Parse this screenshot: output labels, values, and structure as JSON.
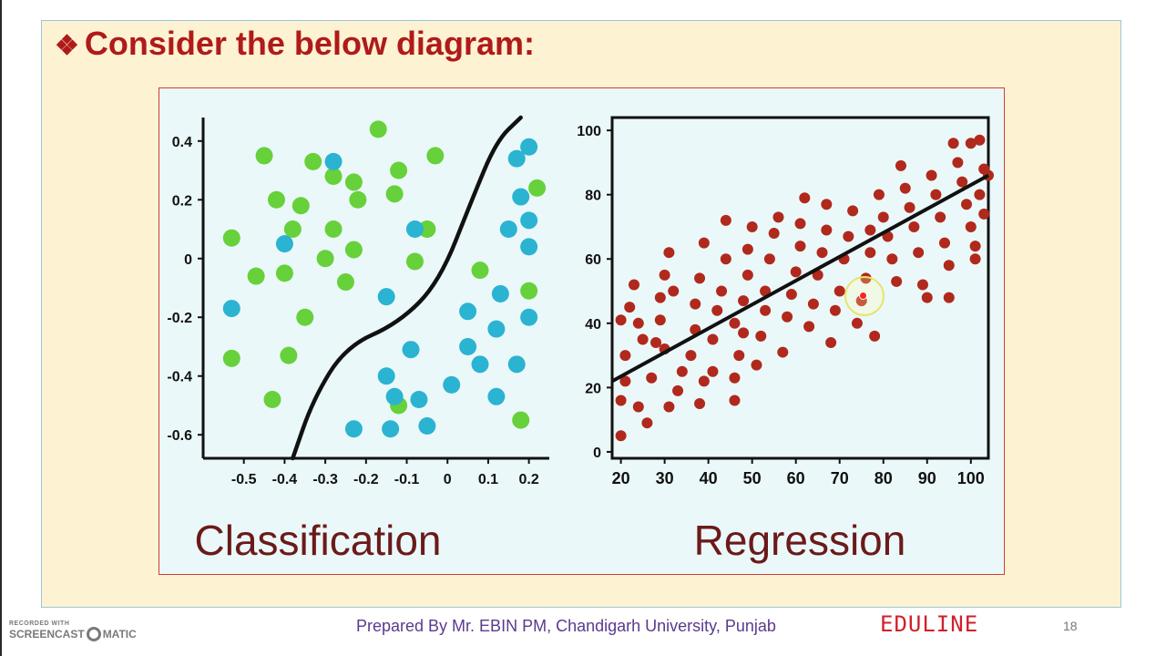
{
  "slide": {
    "title": "Consider the below diagram:",
    "title_bullet": "❖",
    "footer_credit": "Prepared By Mr. EBIN PM, Chandigarh University, Punjab",
    "brand": "EDULINE",
    "page_number": "18",
    "watermark_top": "RECORDED WITH",
    "watermark_main_left": "SCREENCAST",
    "watermark_main_right": "MATIC"
  },
  "colors": {
    "title": "#b01a1a",
    "class_a": "#66d13a",
    "class_b": "#2bb3d2",
    "regression_point": "#b0291c",
    "line": "#111111",
    "caption": "#6b1a1a"
  },
  "chart_data": [
    {
      "type": "scatter",
      "caption": "Classification",
      "xlim": [
        -0.6,
        0.25
      ],
      "ylim": [
        -0.68,
        0.48
      ],
      "x_ticks": [
        -0.5,
        -0.4,
        -0.3,
        -0.2,
        -0.1,
        0,
        0.1,
        0.2
      ],
      "x_tick_labels": [
        "-0.5",
        "-0.4",
        "-0.3",
        "-0.2",
        "-0.1",
        "0",
        "0.1",
        "0.2"
      ],
      "y_ticks": [
        0.4,
        0.2,
        0,
        -0.2,
        -0.4,
        -0.6
      ],
      "y_tick_labels": [
        "0.4",
        "0.2",
        "0",
        "-0.2",
        "-0.4",
        "-0.6"
      ],
      "boundary": [
        [
          -0.38,
          -0.68
        ],
        [
          -0.33,
          -0.48
        ],
        [
          -0.25,
          -0.3
        ],
        [
          -0.12,
          -0.22
        ],
        [
          -0.02,
          -0.08
        ],
        [
          0.06,
          0.2
        ],
        [
          0.12,
          0.4
        ],
        [
          0.18,
          0.48
        ]
      ],
      "series": [
        {
          "color": "#66d13a",
          "points": [
            [
              -0.17,
              0.44
            ],
            [
              -0.45,
              0.35
            ],
            [
              -0.33,
              0.33
            ],
            [
              -0.28,
              0.28
            ],
            [
              -0.23,
              0.26
            ],
            [
              -0.13,
              0.22
            ],
            [
              -0.03,
              0.35
            ],
            [
              -0.05,
              0.1
            ],
            [
              -0.12,
              0.3
            ],
            [
              -0.22,
              0.2
            ],
            [
              -0.36,
              0.18
            ],
            [
              -0.42,
              0.2
            ],
            [
              -0.53,
              0.07
            ],
            [
              -0.28,
              0.1
            ],
            [
              -0.38,
              0.1
            ],
            [
              -0.23,
              0.03
            ],
            [
              -0.3,
              0.0
            ],
            [
              -0.25,
              -0.08
            ],
            [
              -0.47,
              -0.06
            ],
            [
              -0.4,
              -0.05
            ],
            [
              -0.35,
              -0.2
            ],
            [
              -0.53,
              -0.34
            ],
            [
              -0.39,
              -0.33
            ],
            [
              -0.43,
              -0.48
            ],
            [
              -0.08,
              -0.01
            ],
            [
              0.08,
              -0.04
            ],
            [
              0.2,
              -0.11
            ],
            [
              0.22,
              0.24
            ],
            [
              -0.12,
              -0.5
            ],
            [
              0.18,
              -0.55
            ]
          ]
        },
        {
          "color": "#2bb3d2",
          "points": [
            [
              -0.28,
              0.33
            ],
            [
              0.2,
              0.38
            ],
            [
              0.17,
              0.34
            ],
            [
              0.18,
              0.21
            ],
            [
              0.2,
              0.13
            ],
            [
              0.15,
              0.1
            ],
            [
              0.2,
              0.04
            ],
            [
              -0.08,
              0.1
            ],
            [
              -0.4,
              0.05
            ],
            [
              -0.15,
              -0.13
            ],
            [
              -0.53,
              -0.17
            ],
            [
              0.05,
              -0.18
            ],
            [
              0.13,
              -0.12
            ],
            [
              0.2,
              -0.2
            ],
            [
              -0.09,
              -0.31
            ],
            [
              0.05,
              -0.3
            ],
            [
              0.12,
              -0.24
            ],
            [
              0.08,
              -0.36
            ],
            [
              0.17,
              -0.36
            ],
            [
              -0.15,
              -0.4
            ],
            [
              0.01,
              -0.43
            ],
            [
              0.12,
              -0.47
            ],
            [
              -0.13,
              -0.47
            ],
            [
              -0.07,
              -0.48
            ],
            [
              -0.23,
              -0.58
            ],
            [
              -0.14,
              -0.58
            ],
            [
              -0.05,
              -0.57
            ]
          ]
        }
      ]
    },
    {
      "type": "scatter",
      "caption": "Regression",
      "xlim": [
        18,
        104
      ],
      "ylim": [
        -2,
        104
      ],
      "x_ticks": [
        20,
        30,
        40,
        50,
        60,
        70,
        80,
        90,
        100
      ],
      "x_tick_labels": [
        "20",
        "30",
        "40",
        "50",
        "60",
        "70",
        "80",
        "90",
        "100"
      ],
      "y_ticks": [
        100,
        80,
        60,
        40,
        20,
        0
      ],
      "y_tick_labels": [
        "100",
        "80",
        "60",
        "40",
        "20",
        "0"
      ],
      "fit_line": [
        [
          18,
          22
        ],
        [
          104,
          86
        ]
      ],
      "series": [
        {
          "color": "#b0291c",
          "points": [
            [
              20,
              5
            ],
            [
              20,
              16
            ],
            [
              21,
              30
            ],
            [
              22,
              45
            ],
            [
              23,
              52
            ],
            [
              24,
              40
            ],
            [
              25,
              35
            ],
            [
              20,
              41
            ],
            [
              21,
              22
            ],
            [
              24,
              14
            ],
            [
              26,
              9
            ],
            [
              27,
              23
            ],
            [
              28,
              34
            ],
            [
              29,
              41
            ],
            [
              29,
              48
            ],
            [
              30,
              55
            ],
            [
              31,
              62
            ],
            [
              32,
              50
            ],
            [
              30,
              32
            ],
            [
              31,
              14
            ],
            [
              33,
              19
            ],
            [
              34,
              25
            ],
            [
              36,
              30
            ],
            [
              37,
              38
            ],
            [
              37,
              46
            ],
            [
              38,
              54
            ],
            [
              39,
              65
            ],
            [
              38,
              15
            ],
            [
              39,
              22
            ],
            [
              41,
              25
            ],
            [
              41,
              35
            ],
            [
              42,
              44
            ],
            [
              43,
              50
            ],
            [
              44,
              60
            ],
            [
              44,
              72
            ],
            [
              46,
              40
            ],
            [
              46,
              23
            ],
            [
              46,
              16
            ],
            [
              47,
              30
            ],
            [
              48,
              37
            ],
            [
              48,
              47
            ],
            [
              49,
              55
            ],
            [
              49,
              63
            ],
            [
              50,
              70
            ],
            [
              51,
              27
            ],
            [
              52,
              36
            ],
            [
              53,
              44
            ],
            [
              53,
              50
            ],
            [
              54,
              60
            ],
            [
              55,
              68
            ],
            [
              56,
              73
            ],
            [
              57,
              31
            ],
            [
              58,
              42
            ],
            [
              59,
              49
            ],
            [
              60,
              56
            ],
            [
              61,
              64
            ],
            [
              61,
              71
            ],
            [
              62,
              79
            ],
            [
              63,
              39
            ],
            [
              64,
              46
            ],
            [
              65,
              55
            ],
            [
              66,
              62
            ],
            [
              67,
              69
            ],
            [
              67,
              77
            ],
            [
              68,
              34
            ],
            [
              69,
              44
            ],
            [
              70,
              50
            ],
            [
              71,
              60
            ],
            [
              72,
              67
            ],
            [
              73,
              75
            ],
            [
              74,
              40
            ],
            [
              75,
              47
            ],
            [
              76,
              54
            ],
            [
              77,
              62
            ],
            [
              77,
              69
            ],
            [
              78,
              36
            ],
            [
              79,
              80
            ],
            [
              80,
              73
            ],
            [
              81,
              67
            ],
            [
              82,
              60
            ],
            [
              83,
              53
            ],
            [
              84,
              89
            ],
            [
              85,
              82
            ],
            [
              86,
              76
            ],
            [
              87,
              70
            ],
            [
              88,
              62
            ],
            [
              89,
              52
            ],
            [
              90,
              48
            ],
            [
              91,
              86
            ],
            [
              92,
              80
            ],
            [
              93,
              73
            ],
            [
              94,
              65
            ],
            [
              95,
              58
            ],
            [
              96,
              96
            ],
            [
              97,
              90
            ],
            [
              98,
              84
            ],
            [
              99,
              77
            ],
            [
              100,
              70
            ],
            [
              101,
              64
            ],
            [
              102,
              97
            ],
            [
              103,
              88
            ],
            [
              103,
              74
            ],
            [
              104,
              86
            ],
            [
              95,
              48
            ],
            [
              100,
              96
            ],
            [
              101,
              60
            ],
            [
              102,
              80
            ]
          ]
        }
      ]
    }
  ]
}
